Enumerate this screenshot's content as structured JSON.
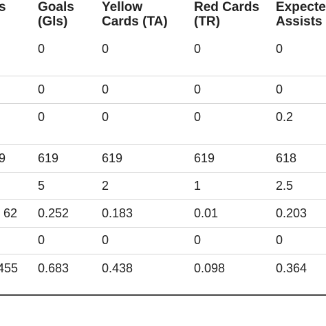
{
  "table": {
    "headers": [
      {
        "line1": "s",
        "line2": ""
      },
      {
        "line1": "Goals",
        "line2": "(Gls)"
      },
      {
        "line1": "Yellow",
        "line2": "Cards (TA)"
      },
      {
        "line1": "Red Cards",
        "line2": "(TR)"
      },
      {
        "line1": "Expected",
        "line2": "Assists (x"
      }
    ],
    "rows": [
      [
        "",
        "0",
        "0",
        "0",
        "0"
      ],
      [
        "",
        "0",
        "0",
        "0",
        "0"
      ],
      [
        "",
        "0",
        "0",
        "0",
        "0.2"
      ],
      [
        "9",
        "619",
        "619",
        "619",
        "618"
      ],
      [
        "",
        "5",
        "2",
        "1",
        "2.5"
      ],
      [
        "62",
        "0.252",
        "0.183",
        "0.01",
        "0.203"
      ],
      [
        "",
        "0",
        "0",
        "0",
        "0"
      ],
      [
        "455",
        "0.683",
        "0.438",
        "0.098",
        "0.364"
      ]
    ]
  }
}
